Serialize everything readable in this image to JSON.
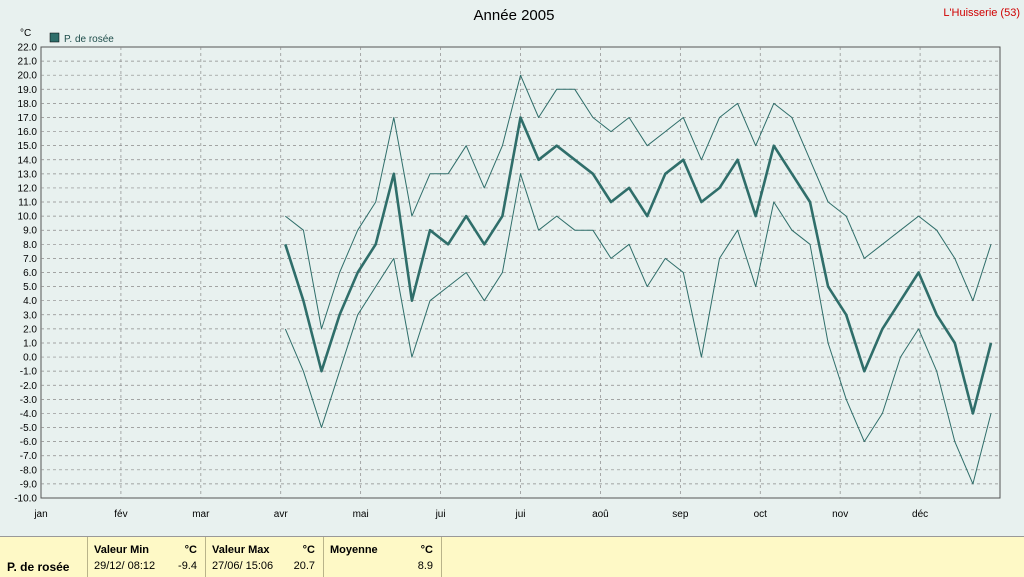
{
  "header": {
    "title": "Année 2005",
    "station": "L'Huisserie (53)"
  },
  "chart_data": {
    "type": "line",
    "title": "Année 2005",
    "ylabel": "°C",
    "ylim": [
      -10,
      22
    ],
    "yticks": [
      "22.0",
      "21.0",
      "20.0",
      "19.0",
      "18.0",
      "17.0",
      "16.0",
      "15.0",
      "14.0",
      "13.0",
      "12.0",
      "11.0",
      "10.0",
      "9.0",
      "8.0",
      "7.0",
      "6.0",
      "5.0",
      "4.0",
      "3.0",
      "2.0",
      "1.0",
      "0.0",
      "-1.0",
      "-2.0",
      "-3.0",
      "-4.0",
      "-5.0",
      "-6.0",
      "-7.0",
      "-8.0",
      "-9.0",
      "-10.0"
    ],
    "months": [
      "jan",
      "fév",
      "mar",
      "avr",
      "mai",
      "jui",
      "jui",
      "aoû",
      "sep",
      "oct",
      "nov",
      "déc"
    ],
    "grid": true,
    "legend": {
      "position": "top-left",
      "label": "P. de rosée",
      "color": "#2f6e6a"
    },
    "x_unit": "week index (week 13 = début avril)",
    "series": [
      {
        "name": "P. de rosée (max)",
        "style": "thin",
        "x": [
          13,
          14,
          15,
          16,
          17,
          18,
          19,
          20,
          21,
          22,
          23,
          24,
          25,
          26,
          27,
          28,
          29,
          30,
          31,
          32,
          33,
          34,
          35,
          36,
          37,
          38,
          39,
          40,
          41,
          42,
          43,
          44,
          45,
          46,
          47,
          48,
          49,
          50,
          51,
          52
        ],
        "values": [
          10,
          9,
          2,
          6,
          9,
          11,
          17,
          10,
          13,
          13,
          15,
          12,
          15,
          20,
          17,
          19,
          19,
          17,
          16,
          17,
          15,
          16,
          17,
          14,
          17,
          18,
          15,
          18,
          17,
          14,
          11,
          10,
          7,
          8,
          9,
          10,
          9,
          7,
          4,
          8
        ]
      },
      {
        "name": "P. de rosée (moyenne)",
        "style": "thick",
        "x": [
          13,
          14,
          15,
          16,
          17,
          18,
          19,
          20,
          21,
          22,
          23,
          24,
          25,
          26,
          27,
          28,
          29,
          30,
          31,
          32,
          33,
          34,
          35,
          36,
          37,
          38,
          39,
          40,
          41,
          42,
          43,
          44,
          45,
          46,
          47,
          48,
          49,
          50,
          51,
          52
        ],
        "values": [
          8,
          4,
          -1,
          3,
          6,
          8,
          13,
          4,
          9,
          8,
          10,
          8,
          10,
          17,
          14,
          15,
          14,
          13,
          11,
          12,
          10,
          13,
          14,
          11,
          12,
          14,
          10,
          15,
          13,
          11,
          5,
          3,
          -1,
          2,
          4,
          6,
          3,
          1,
          -4,
          1
        ]
      },
      {
        "name": "P. de rosée (min)",
        "style": "thin",
        "x": [
          13,
          14,
          15,
          16,
          17,
          18,
          19,
          20,
          21,
          22,
          23,
          24,
          25,
          26,
          27,
          28,
          29,
          30,
          31,
          32,
          33,
          34,
          35,
          36,
          37,
          38,
          39,
          40,
          41,
          42,
          43,
          44,
          45,
          46,
          47,
          48,
          49,
          50,
          51,
          52
        ],
        "values": [
          2,
          -1,
          -5,
          -1,
          3,
          5,
          7,
          0,
          4,
          5,
          6,
          4,
          6,
          13,
          9,
          10,
          9,
          9,
          7,
          8,
          5,
          7,
          6,
          0,
          7,
          9,
          5,
          11,
          9,
          8,
          1,
          -3,
          -6,
          -4,
          0,
          2,
          -1,
          -6,
          -9,
          -4
        ]
      }
    ]
  },
  "stats": {
    "row_label": "P. de rosée",
    "min": {
      "header": "Valeur Min",
      "unit": "°C",
      "date": "29/12/  08:12",
      "value": "-9.4"
    },
    "max": {
      "header": "Valeur Max",
      "unit": "°C",
      "date": "27/06/  15:06",
      "value": "20.7"
    },
    "avg": {
      "header": "Moyenne",
      "unit": "°C",
      "value": "8.9"
    }
  }
}
